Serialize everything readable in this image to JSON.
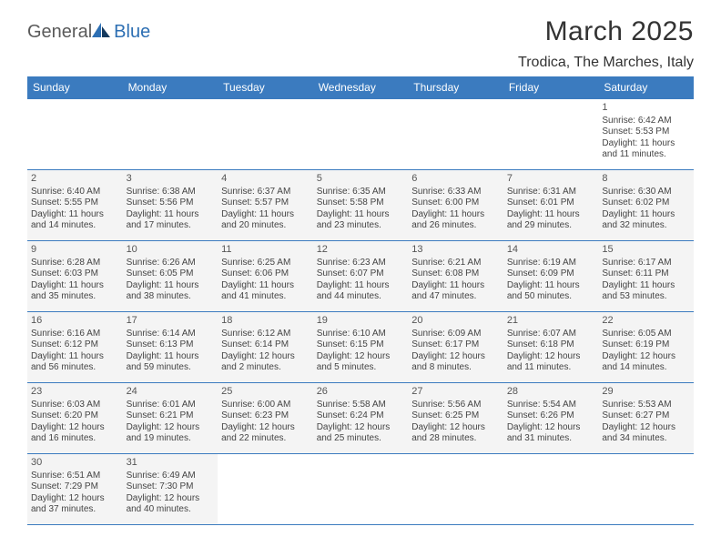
{
  "logo": {
    "part1": "General",
    "part2": "Blue"
  },
  "title": "March 2025",
  "location": "Trodica, The Marches, Italy",
  "colors": {
    "header_bg": "#3b7bbf",
    "header_fg": "#ffffff",
    "cell_bg": "#f4f4f4",
    "border": "#3b7bbf",
    "text": "#444444",
    "logo_gray": "#5a5a5a",
    "logo_blue": "#2d6fb3"
  },
  "weekdays": [
    "Sunday",
    "Monday",
    "Tuesday",
    "Wednesday",
    "Thursday",
    "Friday",
    "Saturday"
  ],
  "weeks": [
    [
      {
        "blank": true
      },
      {
        "blank": true
      },
      {
        "blank": true
      },
      {
        "blank": true
      },
      {
        "blank": true
      },
      {
        "blank": true
      },
      {
        "day": "1",
        "sunrise": "Sunrise: 6:42 AM",
        "sunset": "Sunset: 5:53 PM",
        "daylight1": "Daylight: 11 hours",
        "daylight2": "and 11 minutes."
      }
    ],
    [
      {
        "day": "2",
        "sunrise": "Sunrise: 6:40 AM",
        "sunset": "Sunset: 5:55 PM",
        "daylight1": "Daylight: 11 hours",
        "daylight2": "and 14 minutes."
      },
      {
        "day": "3",
        "sunrise": "Sunrise: 6:38 AM",
        "sunset": "Sunset: 5:56 PM",
        "daylight1": "Daylight: 11 hours",
        "daylight2": "and 17 minutes."
      },
      {
        "day": "4",
        "sunrise": "Sunrise: 6:37 AM",
        "sunset": "Sunset: 5:57 PM",
        "daylight1": "Daylight: 11 hours",
        "daylight2": "and 20 minutes."
      },
      {
        "day": "5",
        "sunrise": "Sunrise: 6:35 AM",
        "sunset": "Sunset: 5:58 PM",
        "daylight1": "Daylight: 11 hours",
        "daylight2": "and 23 minutes."
      },
      {
        "day": "6",
        "sunrise": "Sunrise: 6:33 AM",
        "sunset": "Sunset: 6:00 PM",
        "daylight1": "Daylight: 11 hours",
        "daylight2": "and 26 minutes."
      },
      {
        "day": "7",
        "sunrise": "Sunrise: 6:31 AM",
        "sunset": "Sunset: 6:01 PM",
        "daylight1": "Daylight: 11 hours",
        "daylight2": "and 29 minutes."
      },
      {
        "day": "8",
        "sunrise": "Sunrise: 6:30 AM",
        "sunset": "Sunset: 6:02 PM",
        "daylight1": "Daylight: 11 hours",
        "daylight2": "and 32 minutes."
      }
    ],
    [
      {
        "day": "9",
        "sunrise": "Sunrise: 6:28 AM",
        "sunset": "Sunset: 6:03 PM",
        "daylight1": "Daylight: 11 hours",
        "daylight2": "and 35 minutes."
      },
      {
        "day": "10",
        "sunrise": "Sunrise: 6:26 AM",
        "sunset": "Sunset: 6:05 PM",
        "daylight1": "Daylight: 11 hours",
        "daylight2": "and 38 minutes."
      },
      {
        "day": "11",
        "sunrise": "Sunrise: 6:25 AM",
        "sunset": "Sunset: 6:06 PM",
        "daylight1": "Daylight: 11 hours",
        "daylight2": "and 41 minutes."
      },
      {
        "day": "12",
        "sunrise": "Sunrise: 6:23 AM",
        "sunset": "Sunset: 6:07 PM",
        "daylight1": "Daylight: 11 hours",
        "daylight2": "and 44 minutes."
      },
      {
        "day": "13",
        "sunrise": "Sunrise: 6:21 AM",
        "sunset": "Sunset: 6:08 PM",
        "daylight1": "Daylight: 11 hours",
        "daylight2": "and 47 minutes."
      },
      {
        "day": "14",
        "sunrise": "Sunrise: 6:19 AM",
        "sunset": "Sunset: 6:09 PM",
        "daylight1": "Daylight: 11 hours",
        "daylight2": "and 50 minutes."
      },
      {
        "day": "15",
        "sunrise": "Sunrise: 6:17 AM",
        "sunset": "Sunset: 6:11 PM",
        "daylight1": "Daylight: 11 hours",
        "daylight2": "and 53 minutes."
      }
    ],
    [
      {
        "day": "16",
        "sunrise": "Sunrise: 6:16 AM",
        "sunset": "Sunset: 6:12 PM",
        "daylight1": "Daylight: 11 hours",
        "daylight2": "and 56 minutes."
      },
      {
        "day": "17",
        "sunrise": "Sunrise: 6:14 AM",
        "sunset": "Sunset: 6:13 PM",
        "daylight1": "Daylight: 11 hours",
        "daylight2": "and 59 minutes."
      },
      {
        "day": "18",
        "sunrise": "Sunrise: 6:12 AM",
        "sunset": "Sunset: 6:14 PM",
        "daylight1": "Daylight: 12 hours",
        "daylight2": "and 2 minutes."
      },
      {
        "day": "19",
        "sunrise": "Sunrise: 6:10 AM",
        "sunset": "Sunset: 6:15 PM",
        "daylight1": "Daylight: 12 hours",
        "daylight2": "and 5 minutes."
      },
      {
        "day": "20",
        "sunrise": "Sunrise: 6:09 AM",
        "sunset": "Sunset: 6:17 PM",
        "daylight1": "Daylight: 12 hours",
        "daylight2": "and 8 minutes."
      },
      {
        "day": "21",
        "sunrise": "Sunrise: 6:07 AM",
        "sunset": "Sunset: 6:18 PM",
        "daylight1": "Daylight: 12 hours",
        "daylight2": "and 11 minutes."
      },
      {
        "day": "22",
        "sunrise": "Sunrise: 6:05 AM",
        "sunset": "Sunset: 6:19 PM",
        "daylight1": "Daylight: 12 hours",
        "daylight2": "and 14 minutes."
      }
    ],
    [
      {
        "day": "23",
        "sunrise": "Sunrise: 6:03 AM",
        "sunset": "Sunset: 6:20 PM",
        "daylight1": "Daylight: 12 hours",
        "daylight2": "and 16 minutes."
      },
      {
        "day": "24",
        "sunrise": "Sunrise: 6:01 AM",
        "sunset": "Sunset: 6:21 PM",
        "daylight1": "Daylight: 12 hours",
        "daylight2": "and 19 minutes."
      },
      {
        "day": "25",
        "sunrise": "Sunrise: 6:00 AM",
        "sunset": "Sunset: 6:23 PM",
        "daylight1": "Daylight: 12 hours",
        "daylight2": "and 22 minutes."
      },
      {
        "day": "26",
        "sunrise": "Sunrise: 5:58 AM",
        "sunset": "Sunset: 6:24 PM",
        "daylight1": "Daylight: 12 hours",
        "daylight2": "and 25 minutes."
      },
      {
        "day": "27",
        "sunrise": "Sunrise: 5:56 AM",
        "sunset": "Sunset: 6:25 PM",
        "daylight1": "Daylight: 12 hours",
        "daylight2": "and 28 minutes."
      },
      {
        "day": "28",
        "sunrise": "Sunrise: 5:54 AM",
        "sunset": "Sunset: 6:26 PM",
        "daylight1": "Daylight: 12 hours",
        "daylight2": "and 31 minutes."
      },
      {
        "day": "29",
        "sunrise": "Sunrise: 5:53 AM",
        "sunset": "Sunset: 6:27 PM",
        "daylight1": "Daylight: 12 hours",
        "daylight2": "and 34 minutes."
      }
    ],
    [
      {
        "day": "30",
        "sunrise": "Sunrise: 6:51 AM",
        "sunset": "Sunset: 7:29 PM",
        "daylight1": "Daylight: 12 hours",
        "daylight2": "and 37 minutes."
      },
      {
        "day": "31",
        "sunrise": "Sunrise: 6:49 AM",
        "sunset": "Sunset: 7:30 PM",
        "daylight1": "Daylight: 12 hours",
        "daylight2": "and 40 minutes."
      },
      {
        "blank": true
      },
      {
        "blank": true
      },
      {
        "blank": true
      },
      {
        "blank": true
      },
      {
        "blank": true
      }
    ]
  ]
}
